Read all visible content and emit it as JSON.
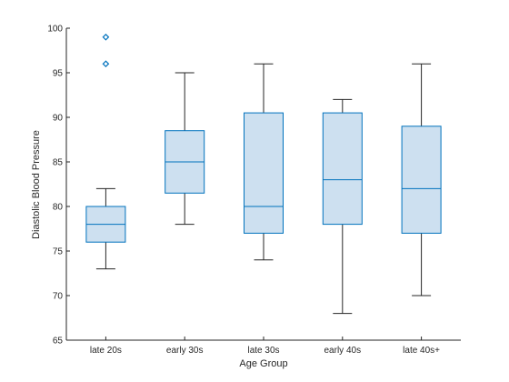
{
  "chart_data": {
    "type": "box",
    "xlabel": "Age Group",
    "ylabel": "Diastolic Blood Pressure",
    "ylim": [
      65,
      100
    ],
    "yticks": [
      65,
      70,
      75,
      80,
      85,
      90,
      95,
      100
    ],
    "grid": false,
    "colors": {
      "box_edge": "#0072bd",
      "box_fill": "#cde0f0",
      "whisker": "#262626",
      "axis": "#262626"
    },
    "categories": [
      "late 20s",
      "early 30s",
      "late 30s",
      "early 40s",
      "late 40s+"
    ],
    "groups": [
      {
        "category": "late 20s",
        "whisker_low": 73,
        "q1": 76,
        "median": 78,
        "q3": 80,
        "whisker_high": 82,
        "outliers": [
          96,
          99
        ]
      },
      {
        "category": "early 30s",
        "whisker_low": 78,
        "q1": 81.5,
        "median": 85,
        "q3": 88.5,
        "whisker_high": 95,
        "outliers": []
      },
      {
        "category": "late 30s",
        "whisker_low": 74,
        "q1": 77,
        "median": 80,
        "q3": 90.5,
        "whisker_high": 96,
        "outliers": []
      },
      {
        "category": "early 40s",
        "whisker_low": 68,
        "q1": 78,
        "median": 83,
        "q3": 90.5,
        "whisker_high": 92,
        "outliers": []
      },
      {
        "category": "late 40s+",
        "whisker_low": 70,
        "q1": 77,
        "median": 82,
        "q3": 89,
        "whisker_high": 96,
        "outliers": []
      }
    ]
  }
}
